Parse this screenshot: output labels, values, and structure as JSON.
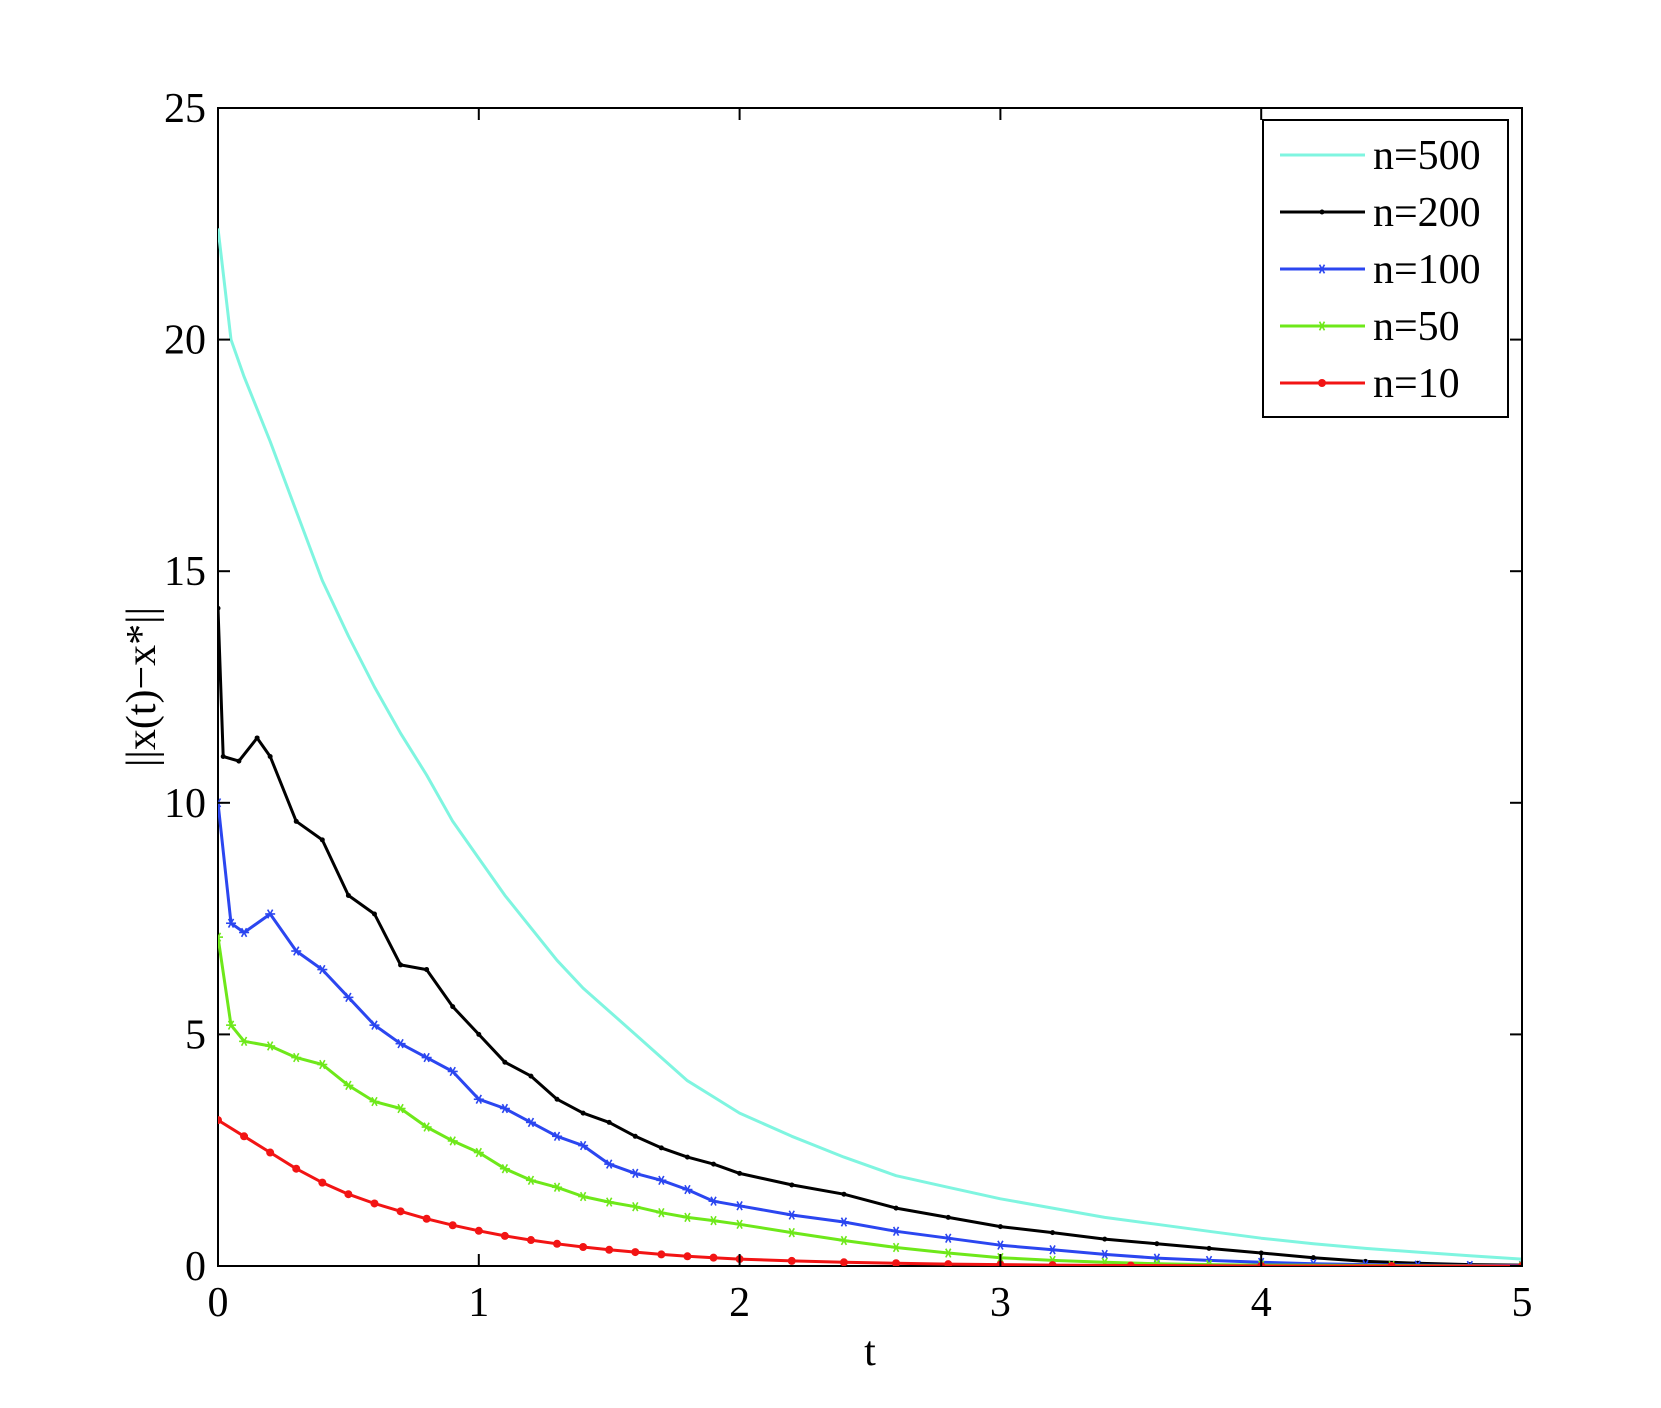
{
  "chart_data": {
    "type": "line",
    "xlabel": "t",
    "ylabel": "||x(t)−x*||",
    "xlim": [
      0,
      5
    ],
    "ylim": [
      0,
      25
    ],
    "xticks": [
      0,
      1,
      2,
      3,
      4,
      5
    ],
    "yticks": [
      0,
      5,
      10,
      15,
      20,
      25
    ],
    "grid": false,
    "legend_position": "top-right",
    "series": [
      {
        "name": "n=500",
        "color": "#7ff5e0",
        "marker": "none",
        "points": [
          [
            0,
            22.4
          ],
          [
            0.05,
            20.0
          ],
          [
            0.1,
            19.2
          ],
          [
            0.2,
            17.8
          ],
          [
            0.3,
            16.3
          ],
          [
            0.4,
            14.8
          ],
          [
            0.5,
            13.6
          ],
          [
            0.6,
            12.5
          ],
          [
            0.7,
            11.5
          ],
          [
            0.8,
            10.6
          ],
          [
            0.9,
            9.6
          ],
          [
            1.0,
            8.8
          ],
          [
            1.1,
            8.0
          ],
          [
            1.2,
            7.3
          ],
          [
            1.3,
            6.6
          ],
          [
            1.4,
            6.0
          ],
          [
            1.5,
            5.5
          ],
          [
            1.6,
            5.0
          ],
          [
            1.7,
            4.5
          ],
          [
            1.8,
            4.0
          ],
          [
            1.9,
            3.65
          ],
          [
            2.0,
            3.3
          ],
          [
            2.2,
            2.8
          ],
          [
            2.4,
            2.35
          ],
          [
            2.6,
            1.95
          ],
          [
            2.8,
            1.7
          ],
          [
            3.0,
            1.45
          ],
          [
            3.2,
            1.25
          ],
          [
            3.4,
            1.05
          ],
          [
            3.6,
            0.9
          ],
          [
            3.8,
            0.75
          ],
          [
            4.0,
            0.6
          ],
          [
            4.2,
            0.48
          ],
          [
            4.4,
            0.38
          ],
          [
            4.6,
            0.3
          ],
          [
            4.8,
            0.22
          ],
          [
            5.0,
            0.15
          ]
        ]
      },
      {
        "name": "n=200",
        "color": "#000000",
        "marker": "point",
        "points": [
          [
            0,
            14.2
          ],
          [
            0.02,
            11.0
          ],
          [
            0.08,
            10.9
          ],
          [
            0.15,
            11.4
          ],
          [
            0.2,
            11.0
          ],
          [
            0.3,
            9.6
          ],
          [
            0.4,
            9.2
          ],
          [
            0.5,
            8.0
          ],
          [
            0.6,
            7.6
          ],
          [
            0.7,
            6.5
          ],
          [
            0.8,
            6.4
          ],
          [
            0.9,
            5.6
          ],
          [
            1.0,
            5.0
          ],
          [
            1.1,
            4.4
          ],
          [
            1.2,
            4.1
          ],
          [
            1.3,
            3.6
          ],
          [
            1.4,
            3.3
          ],
          [
            1.5,
            3.1
          ],
          [
            1.6,
            2.8
          ],
          [
            1.7,
            2.55
          ],
          [
            1.8,
            2.35
          ],
          [
            1.9,
            2.2
          ],
          [
            2.0,
            2.0
          ],
          [
            2.2,
            1.75
          ],
          [
            2.4,
            1.55
          ],
          [
            2.6,
            1.25
          ],
          [
            2.8,
            1.05
          ],
          [
            3.0,
            0.85
          ],
          [
            3.2,
            0.72
          ],
          [
            3.4,
            0.58
          ],
          [
            3.6,
            0.48
          ],
          [
            3.8,
            0.38
          ],
          [
            4.0,
            0.28
          ],
          [
            4.2,
            0.18
          ],
          [
            4.4,
            0.1
          ],
          [
            4.6,
            0.06
          ],
          [
            4.8,
            0.03
          ],
          [
            5.0,
            0.02
          ]
        ]
      },
      {
        "name": "n=100",
        "color": "#2b46f0",
        "marker": "star",
        "points": [
          [
            0,
            10.0
          ],
          [
            0.05,
            7.4
          ],
          [
            0.1,
            7.2
          ],
          [
            0.2,
            7.6
          ],
          [
            0.3,
            6.8
          ],
          [
            0.4,
            6.4
          ],
          [
            0.5,
            5.8
          ],
          [
            0.6,
            5.2
          ],
          [
            0.7,
            4.8
          ],
          [
            0.8,
            4.5
          ],
          [
            0.9,
            4.2
          ],
          [
            1.0,
            3.6
          ],
          [
            1.1,
            3.4
          ],
          [
            1.2,
            3.1
          ],
          [
            1.3,
            2.8
          ],
          [
            1.4,
            2.6
          ],
          [
            1.5,
            2.2
          ],
          [
            1.6,
            2.0
          ],
          [
            1.7,
            1.85
          ],
          [
            1.8,
            1.65
          ],
          [
            1.9,
            1.4
          ],
          [
            2.0,
            1.3
          ],
          [
            2.2,
            1.1
          ],
          [
            2.4,
            0.95
          ],
          [
            2.6,
            0.75
          ],
          [
            2.8,
            0.6
          ],
          [
            3.0,
            0.45
          ],
          [
            3.2,
            0.35
          ],
          [
            3.4,
            0.25
          ],
          [
            3.6,
            0.17
          ],
          [
            3.8,
            0.12
          ],
          [
            4.0,
            0.08
          ],
          [
            4.2,
            0.05
          ],
          [
            4.4,
            0.03
          ],
          [
            4.6,
            0.02
          ],
          [
            4.8,
            0.01
          ],
          [
            5.0,
            0.01
          ]
        ]
      },
      {
        "name": "n=50",
        "color": "#6ee81a",
        "marker": "star",
        "points": [
          [
            0,
            7.1
          ],
          [
            0.05,
            5.2
          ],
          [
            0.1,
            4.85
          ],
          [
            0.2,
            4.75
          ],
          [
            0.3,
            4.5
          ],
          [
            0.4,
            4.35
          ],
          [
            0.5,
            3.9
          ],
          [
            0.6,
            3.55
          ],
          [
            0.7,
            3.4
          ],
          [
            0.8,
            3.0
          ],
          [
            0.9,
            2.7
          ],
          [
            1.0,
            2.45
          ],
          [
            1.1,
            2.1
          ],
          [
            1.2,
            1.85
          ],
          [
            1.3,
            1.7
          ],
          [
            1.4,
            1.5
          ],
          [
            1.5,
            1.38
          ],
          [
            1.6,
            1.28
          ],
          [
            1.7,
            1.15
          ],
          [
            1.8,
            1.05
          ],
          [
            1.9,
            0.98
          ],
          [
            2.0,
            0.9
          ],
          [
            2.2,
            0.72
          ],
          [
            2.4,
            0.55
          ],
          [
            2.6,
            0.4
          ],
          [
            2.8,
            0.28
          ],
          [
            3.0,
            0.18
          ],
          [
            3.2,
            0.12
          ],
          [
            3.4,
            0.08
          ],
          [
            3.6,
            0.05
          ],
          [
            3.8,
            0.03
          ],
          [
            4.0,
            0.02
          ],
          [
            4.5,
            0.01
          ],
          [
            5.0,
            0.0
          ]
        ]
      },
      {
        "name": "n=10",
        "color": "#f21414",
        "marker": "dot",
        "points": [
          [
            0,
            3.15
          ],
          [
            0.1,
            2.8
          ],
          [
            0.2,
            2.45
          ],
          [
            0.3,
            2.1
          ],
          [
            0.4,
            1.8
          ],
          [
            0.5,
            1.55
          ],
          [
            0.6,
            1.35
          ],
          [
            0.7,
            1.18
          ],
          [
            0.8,
            1.02
          ],
          [
            0.9,
            0.88
          ],
          [
            1.0,
            0.76
          ],
          [
            1.1,
            0.65
          ],
          [
            1.2,
            0.56
          ],
          [
            1.3,
            0.48
          ],
          [
            1.4,
            0.41
          ],
          [
            1.5,
            0.35
          ],
          [
            1.6,
            0.3
          ],
          [
            1.7,
            0.25
          ],
          [
            1.8,
            0.21
          ],
          [
            1.9,
            0.18
          ],
          [
            2.0,
            0.15
          ],
          [
            2.2,
            0.11
          ],
          [
            2.4,
            0.08
          ],
          [
            2.6,
            0.06
          ],
          [
            2.8,
            0.04
          ],
          [
            3.0,
            0.03
          ],
          [
            3.2,
            0.02
          ],
          [
            3.5,
            0.01
          ],
          [
            4.0,
            0.0
          ],
          [
            4.5,
            0.0
          ],
          [
            5.0,
            0.0
          ]
        ]
      }
    ]
  }
}
